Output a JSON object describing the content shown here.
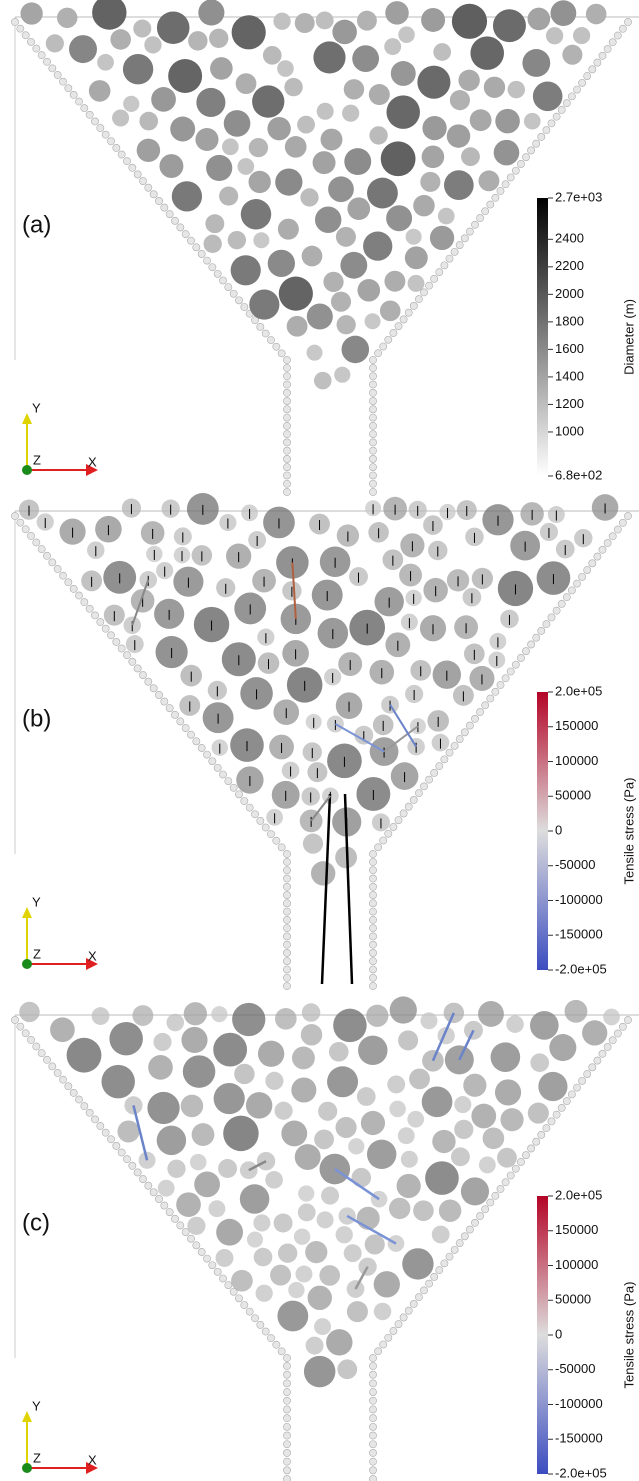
{
  "panels": [
    {
      "label": "(a)",
      "axes": {
        "y": "Y",
        "z": "Z",
        "x": "X"
      },
      "colorbar": {
        "title": "Diameter (m)",
        "range": [
          680,
          2700
        ],
        "colors": [
          "#ffffff",
          "#000000"
        ],
        "ticks": [
          {
            "value": 2700,
            "label": "2.7e+03"
          },
          2400,
          2200,
          2000,
          1800,
          1600,
          1400,
          1200,
          1000,
          {
            "value": 680,
            "label": "6.8e+02"
          }
        ]
      }
    },
    {
      "label": "(b)",
      "axes": {
        "y": "Y",
        "z": "Z",
        "x": "X"
      },
      "colorbar": {
        "title": "Tensile stress (Pa)",
        "range": [
          -200000,
          200000
        ],
        "colors": [
          "#3b4cc0",
          "#dddddd",
          "#b40426"
        ],
        "ticks": [
          {
            "value": 200000,
            "label": "2.0e+05"
          },
          150000,
          100000,
          50000,
          0,
          -50000,
          -100000,
          -150000,
          {
            "value": -200000,
            "label": "-2.0e+05"
          }
        ]
      }
    },
    {
      "label": "(c)",
      "axes": {
        "y": "Y",
        "z": "Z",
        "x": "X"
      },
      "colorbar": {
        "title": "Tensile stress (Pa)",
        "range": [
          -200000,
          200000
        ],
        "colors": [
          "#3b4cc0",
          "#dddddd",
          "#b40426"
        ],
        "ticks": [
          {
            "value": 200000,
            "label": "2.0e+05"
          },
          150000,
          100000,
          50000,
          0,
          -50000,
          -100000,
          -150000,
          {
            "value": -200000,
            "label": "-2.0e+05"
          }
        ]
      }
    }
  ]
}
